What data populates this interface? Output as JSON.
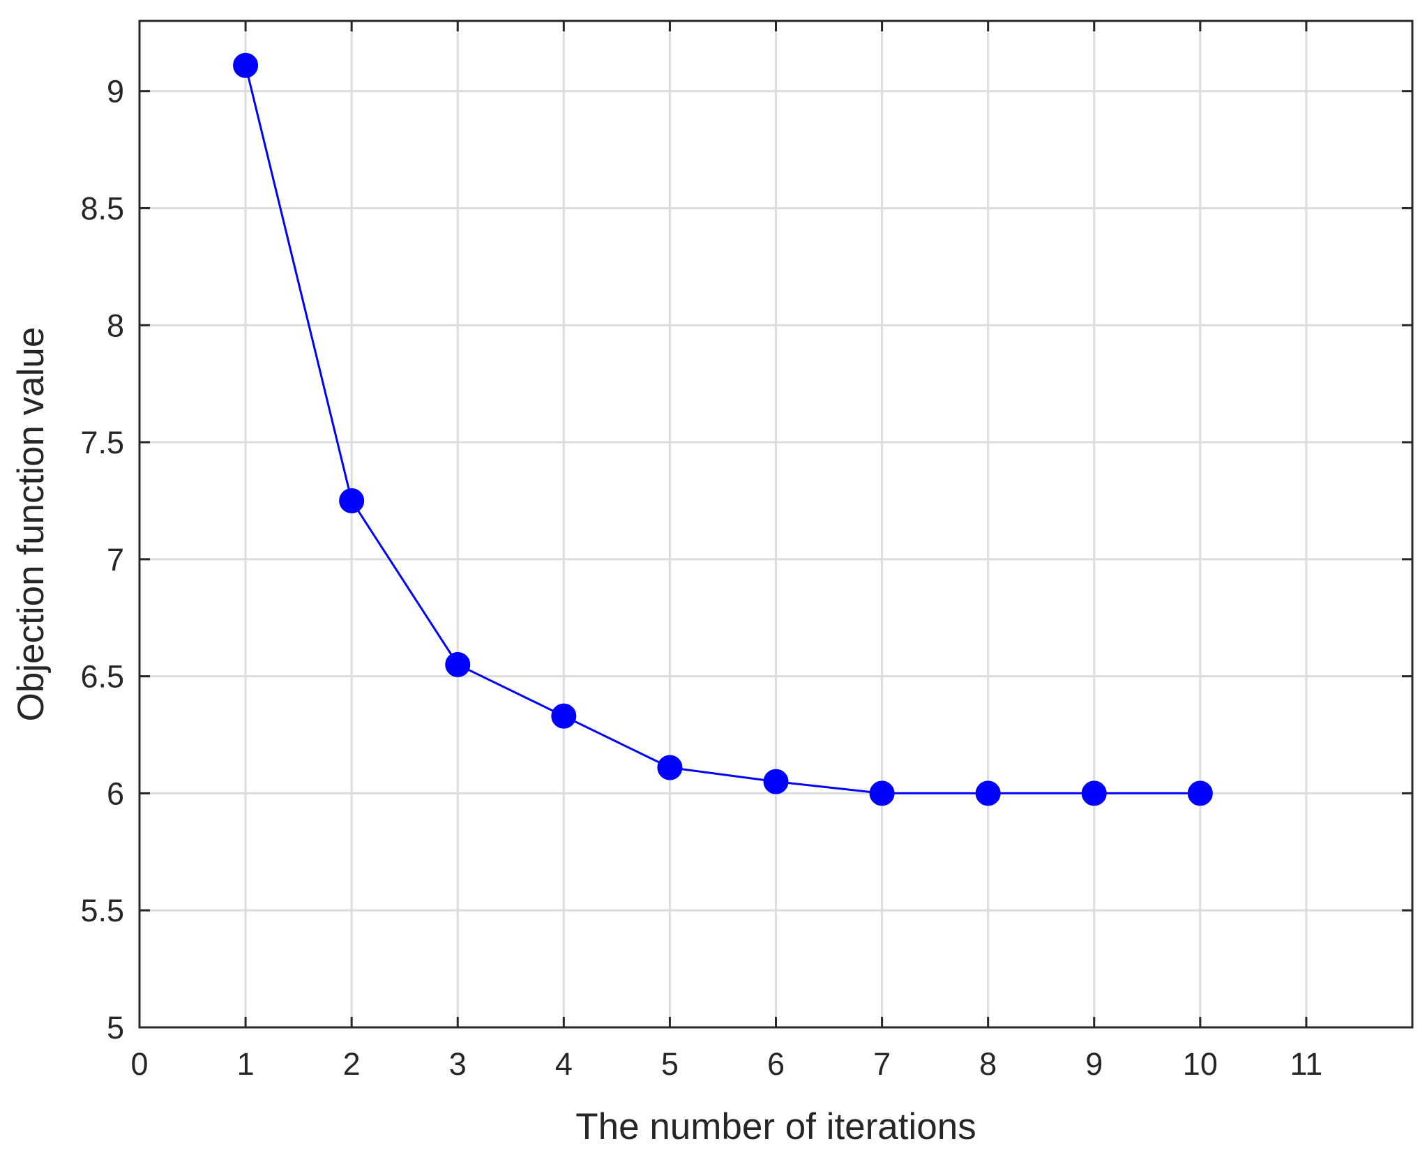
{
  "chart_data": {
    "type": "line",
    "title": "",
    "xlabel": "The number of iterations",
    "ylabel": "Objection function value",
    "xlim": [
      0,
      12
    ],
    "ylim": [
      5,
      9.3
    ],
    "xticks": [
      0,
      1,
      2,
      3,
      4,
      5,
      6,
      7,
      8,
      9,
      10,
      11
    ],
    "xtick_labels": [
      "0",
      "1",
      "2",
      "3",
      "4",
      "5",
      "6",
      "7",
      "8",
      "9",
      "10",
      "11"
    ],
    "yticks": [
      5,
      5.5,
      6,
      6.5,
      7,
      7.5,
      8,
      8.5,
      9
    ],
    "ytick_labels": [
      "5",
      "5.5",
      "6",
      "6.5",
      "7",
      "7.5",
      "8",
      "8.5",
      "9"
    ],
    "grid": true,
    "series": [
      {
        "color": "#0000ff",
        "marker": "circle",
        "x": [
          1,
          2,
          3,
          4,
          5,
          6,
          7,
          8,
          9,
          10
        ],
        "y": [
          9.11,
          7.25,
          6.55,
          6.33,
          6.11,
          6.05,
          6.0,
          6.0,
          6.0,
          6.0
        ]
      }
    ]
  },
  "colors": {
    "line": "#0000ff",
    "axis": "#262626",
    "grid": "#dcdcdc",
    "background": "#ffffff"
  }
}
